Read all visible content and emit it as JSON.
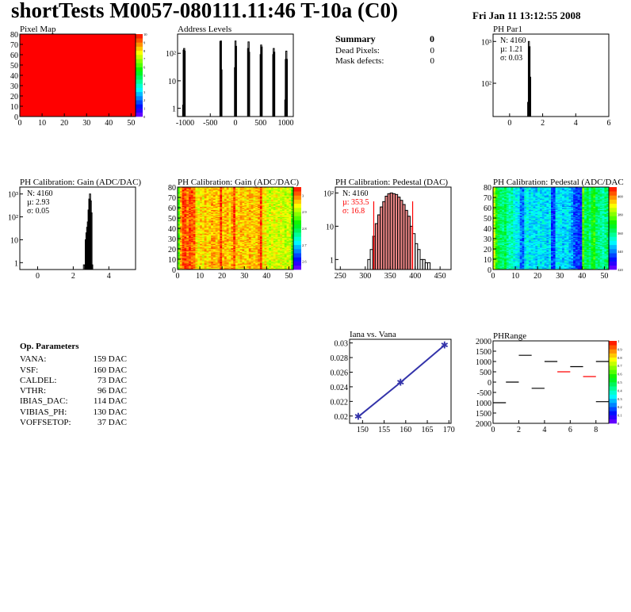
{
  "header": {
    "title": "shortTests M0057-080111.11:46 T-10a (C0)",
    "date": "Fri Jan 11 13:12:55 2008"
  },
  "summary": {
    "title": "Summary",
    "total": "0",
    "rows": [
      {
        "label": "Dead Pixels:",
        "value": "0"
      },
      {
        "label": "Mask defects:",
        "value": "0"
      }
    ]
  },
  "op_parameters": {
    "title": "Op. Parameters",
    "rows": [
      {
        "label": "VANA:",
        "value": "159 DAC"
      },
      {
        "label": "VSF:",
        "value": "160 DAC"
      },
      {
        "label": "CALDEL:",
        "value": "73 DAC"
      },
      {
        "label": "VTHR:",
        "value": "96 DAC"
      },
      {
        "label": "IBIAS_DAC:",
        "value": "114 DAC"
      },
      {
        "label": "VIBIAS_PH:",
        "value": "130 DAC"
      },
      {
        "label": "VOFFSETOP:",
        "value": "37 DAC"
      }
    ]
  },
  "colors": {
    "line": "#000000",
    "fit": "#ff0000",
    "graph": "#3333aa",
    "frame": "#000000"
  },
  "chart_data": [
    {
      "type": "heatmap",
      "title": "Pixel Map",
      "xlim": [
        0,
        52
      ],
      "ylim": [
        0,
        80
      ],
      "zlim": [
        0,
        10
      ],
      "xticks": [
        "0",
        "10",
        "20",
        "30",
        "40",
        "50"
      ],
      "yticks": [
        "0",
        "10",
        "20",
        "30",
        "40",
        "50",
        "60",
        "70",
        "80"
      ],
      "zticks": [
        "0",
        "1",
        "2",
        "3",
        "4",
        "5",
        "6",
        "7",
        "8",
        "9",
        "10"
      ],
      "uniform_value": 10
    },
    {
      "type": "bar",
      "title": "Address Levels",
      "log_y": true,
      "xlim": [
        -1150,
        1150
      ],
      "ylim": [
        0.5,
        500
      ],
      "xticks": [
        "-1000",
        "-500",
        "0",
        "500",
        "1000"
      ],
      "yticks": [
        "1",
        "10",
        "10²"
      ],
      "bins": [
        [
          -1040,
          1.3
        ],
        [
          -1030,
          130
        ],
        [
          -1020,
          150
        ],
        [
          -1010,
          120
        ],
        [
          -300,
          270
        ],
        [
          -290,
          280
        ],
        [
          -280,
          25
        ],
        [
          -10,
          30
        ],
        [
          0,
          280
        ],
        [
          10,
          180
        ],
        [
          250,
          150
        ],
        [
          260,
          260
        ],
        [
          270,
          110
        ],
        [
          500,
          90
        ],
        [
          510,
          200
        ],
        [
          520,
          170
        ],
        [
          750,
          90
        ],
        [
          760,
          150
        ],
        [
          770,
          110
        ],
        [
          990,
          2
        ],
        [
          1000,
          60
        ],
        [
          1010,
          120
        ],
        [
          1020,
          60
        ]
      ]
    },
    {
      "type": "bar",
      "title": "PH Par1",
      "log_y": true,
      "xlim": [
        -1,
        6
      ],
      "ylim": [
        16,
        1500
      ],
      "xticks": [
        "0",
        "2",
        "4",
        "6"
      ],
      "yticks": [
        "10²",
        "10³"
      ],
      "stats": {
        "n": "N: 4160",
        "mean": "µ: 1.21",
        "sigma": "σ: 0.03"
      },
      "bins": [
        [
          1.12,
          35
        ],
        [
          1.16,
          1000
        ],
        [
          1.2,
          750
        ],
        [
          1.24,
          140
        ]
      ]
    },
    {
      "type": "bar",
      "title": "PH Calibration: Gain (ADC/DAC)",
      "log_y": true,
      "xlim": [
        -1,
        5.5
      ],
      "ylim": [
        0.5,
        2000
      ],
      "xticks": [
        "0",
        "2",
        "4"
      ],
      "yticks": [
        "1",
        "10",
        "10²",
        "10³"
      ],
      "stats": {
        "n": "N: 4160",
        "mean": "µ: 2.93",
        "sigma": "σ: 0.05"
      },
      "bins": [
        [
          2.6,
          0.8
        ],
        [
          2.7,
          10
        ],
        [
          2.74,
          20
        ],
        [
          2.78,
          35
        ],
        [
          2.82,
          60
        ],
        [
          2.86,
          200
        ],
        [
          2.9,
          600
        ],
        [
          2.94,
          1000
        ],
        [
          2.98,
          500
        ],
        [
          3.02,
          150
        ],
        [
          3.06,
          0.8
        ]
      ]
    },
    {
      "type": "heatmap",
      "title": "PH Calibration: Gain (ADC/DAC)",
      "xlim": [
        0,
        52
      ],
      "ylim": [
        0,
        80
      ],
      "zlim": [
        2.55,
        3.05
      ],
      "xticks": [
        "0",
        "10",
        "20",
        "30",
        "40",
        "50"
      ],
      "yticks": [
        "0",
        "10",
        "20",
        "30",
        "40",
        "50",
        "60",
        "70",
        "80"
      ],
      "zticks": [
        "2.6",
        "2.7",
        "2.8",
        "2.9",
        "3"
      ],
      "column_levels": [
        2.86,
        2.97,
        3.02,
        3.02,
        3.0,
        3.02,
        3.01,
        3.0,
        2.95,
        2.94,
        2.96,
        2.94,
        2.97,
        2.95,
        2.96,
        2.98,
        2.97,
        2.96,
        2.97,
        3.03,
        2.96,
        2.97,
        2.97,
        2.95,
        2.98,
        3.02,
        2.96,
        2.95,
        2.97,
        2.96,
        2.95,
        2.96,
        2.97,
        2.96,
        2.95,
        2.97,
        2.98,
        3.02,
        2.94,
        2.95,
        2.92,
        2.91,
        2.93,
        2.92,
        2.93,
        2.91,
        2.93,
        2.92,
        2.91,
        2.92,
        2.92,
        2.86
      ]
    },
    {
      "type": "bar",
      "title": "PH Calibration: Pedestal (DAC)",
      "log_y": true,
      "xlim": [
        240,
        472
      ],
      "ylim": [
        0.5,
        150
      ],
      "xticks": [
        "250",
        "300",
        "350",
        "400",
        "450"
      ],
      "yticks": [
        "1",
        "10",
        "10²"
      ],
      "stats": {
        "n": "N: 4160",
        "mean": "µ: 353.5",
        "sigma": "σ: 16.8"
      },
      "fit_range": [
        317,
        395
      ],
      "bins": [
        [
          305,
          1
        ],
        [
          310,
          2
        ],
        [
          315,
          5
        ],
        [
          320,
          12
        ],
        [
          325,
          22
        ],
        [
          330,
          38
        ],
        [
          335,
          55
        ],
        [
          340,
          80
        ],
        [
          345,
          95
        ],
        [
          350,
          100
        ],
        [
          355,
          95
        ],
        [
          360,
          90
        ],
        [
          365,
          75
        ],
        [
          370,
          60
        ],
        [
          375,
          45
        ],
        [
          380,
          30
        ],
        [
          385,
          20
        ],
        [
          390,
          10
        ],
        [
          395,
          6
        ],
        [
          400,
          3
        ],
        [
          405,
          2
        ],
        [
          410,
          1
        ],
        [
          415,
          1
        ],
        [
          420,
          0.8
        ],
        [
          425,
          0.8
        ]
      ]
    },
    {
      "type": "heatmap",
      "title": "PH Calibration: Pedestal (ADC/DAC",
      "xlim": [
        0,
        52
      ],
      "ylim": [
        0,
        80
      ],
      "zlim": [
        320,
        410
      ],
      "xticks": [
        "0",
        "10",
        "20",
        "30",
        "40",
        "50"
      ],
      "yticks": [
        "0",
        "10",
        "20",
        "30",
        "40",
        "50",
        "60",
        "70",
        "80"
      ],
      "zticks": [
        "320",
        "340",
        "360",
        "380",
        "400"
      ],
      "column_levels": [
        385,
        372,
        365,
        362,
        360,
        364,
        358,
        355,
        357,
        352,
        350,
        350,
        340,
        338,
        350,
        352,
        348,
        350,
        348,
        346,
        350,
        348,
        350,
        348,
        346,
        350,
        336,
        334,
        348,
        350,
        350,
        346,
        348,
        350,
        345,
        342,
        336,
        336,
        334,
        332,
        375,
        362,
        365,
        360,
        368,
        372,
        362,
        360,
        358,
        356,
        360,
        362
      ]
    },
    {
      "type": "line",
      "title": "Iana vs. Vana",
      "xlim": [
        147,
        170.5
      ],
      "ylim": [
        0.019,
        0.0305
      ],
      "xticks": [
        "150",
        "155",
        "160",
        "165",
        "170"
      ],
      "yticks": [
        "0.02",
        "0.022",
        "0.024",
        "0.026",
        "0.028",
        "0.03"
      ],
      "points": [
        [
          149,
          0.0199
        ],
        [
          158.8,
          0.0246
        ],
        [
          169,
          0.0297
        ]
      ]
    },
    {
      "type": "heatmap",
      "title": "PHRange",
      "xlim": [
        0,
        9
      ],
      "ylim": [
        -2000,
        2000
      ],
      "zlim": [
        0,
        1
      ],
      "xticks": [
        "0",
        "2",
        "4",
        "6",
        "8"
      ],
      "yticks": [
        "2000",
        "1500",
        "1000",
        "500",
        "0",
        "-500",
        "1000",
        "1500",
        "2000"
      ],
      "zticks": [
        "0",
        "0.1",
        "0.2",
        "0.3",
        "0.4",
        "0.5",
        "0.6",
        "0.7",
        "0.8",
        "0.9",
        "1"
      ],
      "segments": [
        [
          0,
          -1000,
          "#000000"
        ],
        [
          1,
          0,
          "#000000"
        ],
        [
          2,
          1300,
          "#000000"
        ],
        [
          3,
          -300,
          "#000000"
        ],
        [
          4,
          1000,
          "#000000"
        ],
        [
          5,
          500,
          "#ff0000"
        ],
        [
          6,
          750,
          "#000000"
        ],
        [
          7,
          270,
          "#ff0000"
        ],
        [
          8,
          1000,
          "#000000"
        ],
        [
          8,
          -950,
          "#000000"
        ]
      ]
    }
  ]
}
